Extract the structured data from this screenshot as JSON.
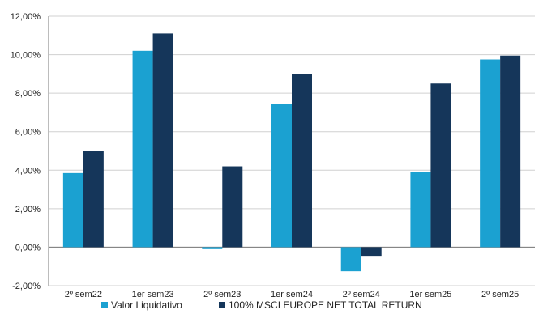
{
  "chart_data": {
    "type": "bar",
    "categories": [
      "2º sem22",
      "1er sem23",
      "2º sem23",
      "1er sem24",
      "2º sem24",
      "1er sem25",
      "2º sem25"
    ],
    "series": [
      {
        "name": "Valor Liquidativo",
        "values": [
          3.85,
          10.2,
          -0.1,
          7.45,
          -1.25,
          3.9,
          9.75
        ],
        "color": "#1ba1d1"
      },
      {
        "name": "100% MSCI EUROPE NET TOTAL RETURN",
        "values": [
          5.0,
          11.1,
          4.2,
          9.0,
          -0.45,
          8.5,
          9.95
        ],
        "color": "#15365a"
      }
    ],
    "yticks": [
      "12,00%",
      "10,00%",
      "8,00%",
      "6,00%",
      "4,00%",
      "2,00%",
      "0,00%",
      "-2,00%"
    ],
    "ylim": [
      -2,
      12
    ],
    "grid": true,
    "legend_position": "bottom"
  }
}
